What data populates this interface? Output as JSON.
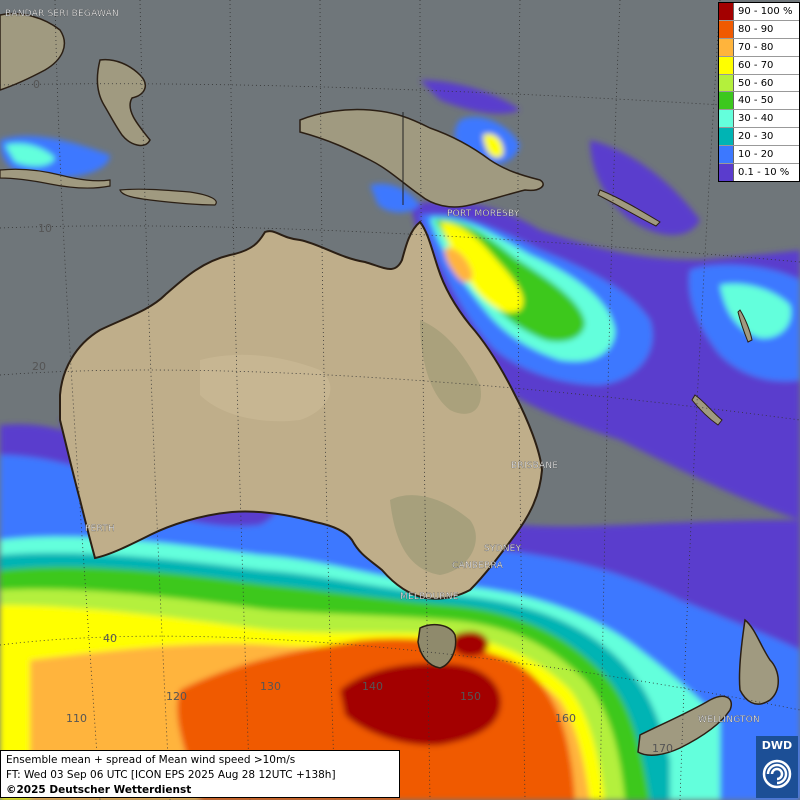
{
  "map": {
    "cities": [
      {
        "name": "BANDAR SERI BEGAWAN"
      },
      {
        "name": "PORT MORESBY"
      },
      {
        "name": "BRISBANE"
      },
      {
        "name": "PERTH"
      },
      {
        "name": "SYDNEY"
      },
      {
        "name": "CANBERRA"
      },
      {
        "name": "MELBOURNE"
      },
      {
        "name": "WELLINGTON"
      }
    ],
    "grid_labels": [
      "0",
      "10",
      "20",
      "40",
      "110",
      "120",
      "130",
      "140",
      "150",
      "160",
      "170"
    ]
  },
  "legend": {
    "entries": [
      {
        "label": "90 - 100 %",
        "color": "#a30000"
      },
      {
        "label": "80 - 90",
        "color": "#f05a00"
      },
      {
        "label": "70 - 80",
        "color": "#ffb43c"
      },
      {
        "label": "60 - 70",
        "color": "#ffff00"
      },
      {
        "label": "50 - 60",
        "color": "#b4f03c"
      },
      {
        "label": "40 - 50",
        "color": "#3cc81e"
      },
      {
        "label": "30 - 40",
        "color": "#64ffdc"
      },
      {
        "label": "20 - 30",
        "color": "#00b4b4"
      },
      {
        "label": "10 - 20",
        "color": "#3c78ff"
      },
      {
        "label": "0.1 - 10 %",
        "color": "#5a3ccd"
      }
    ]
  },
  "info": {
    "line1": "Ensemble mean + spread of Mean wind speed >10m/s",
    "line2": "FT: Wed 03 Sep 06 UTC [ICON EPS 2025 Aug 28 12UTC +138h]",
    "copyright": "©2025 Deutscher Wetterdienst"
  },
  "logo": {
    "text": "DWD"
  }
}
